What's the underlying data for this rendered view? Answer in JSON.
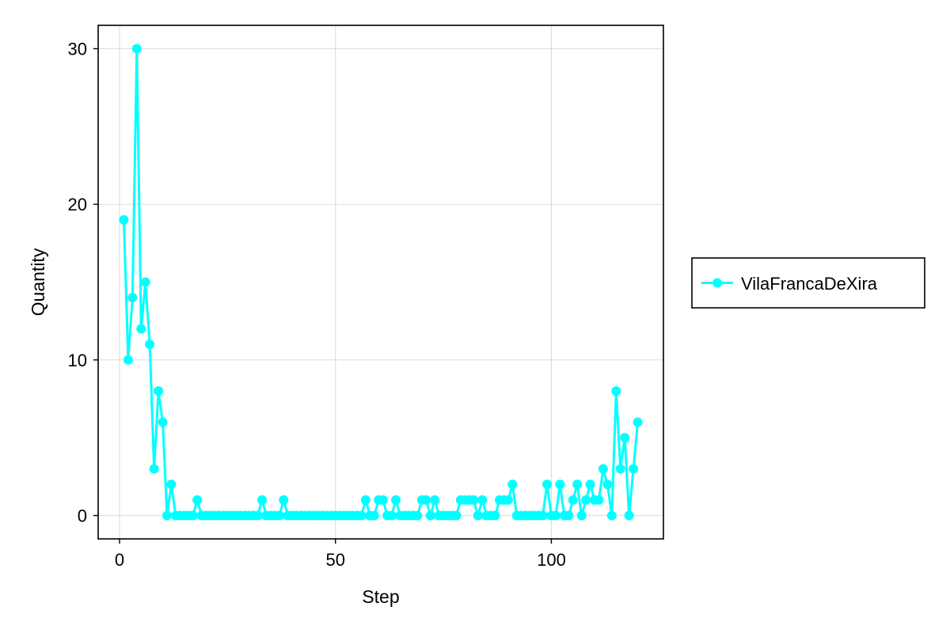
{
  "chart_data": {
    "type": "line",
    "title": "",
    "xlabel": "Step",
    "ylabel": "Quantity",
    "xlim": [
      -4.95,
      125.95
    ],
    "ylim": [
      -1.5,
      31.5
    ],
    "xticks": [
      0,
      50,
      100
    ],
    "yticks": [
      0,
      10,
      20,
      30
    ],
    "grid": true,
    "legend": {
      "placement": "right"
    },
    "series": [
      {
        "name": "VilaFrancaDeXira",
        "color": "#00ffff",
        "marker": "circle",
        "x": [
          1,
          2,
          3,
          4,
          5,
          6,
          7,
          8,
          9,
          10,
          11,
          12,
          13,
          14,
          15,
          16,
          17,
          18,
          19,
          20,
          21,
          22,
          23,
          24,
          25,
          26,
          27,
          28,
          29,
          30,
          31,
          32,
          33,
          34,
          35,
          36,
          37,
          38,
          39,
          40,
          41,
          42,
          43,
          44,
          45,
          46,
          47,
          48,
          49,
          50,
          51,
          52,
          53,
          54,
          55,
          56,
          57,
          58,
          59,
          60,
          61,
          62,
          63,
          64,
          65,
          66,
          67,
          68,
          69,
          70,
          71,
          72,
          73,
          74,
          75,
          76,
          77,
          78,
          79,
          80,
          81,
          82,
          83,
          84,
          85,
          86,
          87,
          88,
          89,
          90,
          91,
          92,
          93,
          94,
          95,
          96,
          97,
          98,
          99,
          100,
          101,
          102,
          103,
          104,
          105,
          106,
          107,
          108,
          109,
          110,
          111,
          112,
          113,
          114,
          115,
          116,
          117,
          118,
          119,
          120
        ],
        "y": [
          19,
          10,
          14,
          30,
          12,
          15,
          11,
          3,
          8,
          6,
          0,
          2,
          0,
          0,
          0,
          0,
          0,
          1,
          0,
          0,
          0,
          0,
          0,
          0,
          0,
          0,
          0,
          0,
          0,
          0,
          0,
          0,
          1,
          0,
          0,
          0,
          0,
          1,
          0,
          0,
          0,
          0,
          0,
          0,
          0,
          0,
          0,
          0,
          0,
          0,
          0,
          0,
          0,
          0,
          0,
          0,
          1,
          0,
          0,
          1,
          1,
          0,
          0,
          1,
          0,
          0,
          0,
          0,
          0,
          1,
          1,
          0,
          1,
          0,
          0,
          0,
          0,
          0,
          1,
          1,
          1,
          1,
          0,
          1,
          0,
          0,
          0,
          1,
          1,
          1,
          2,
          0,
          0,
          0,
          0,
          0,
          0,
          0,
          2,
          0,
          0,
          2,
          0,
          0,
          1,
          2,
          0,
          1,
          2,
          1,
          1,
          3,
          2,
          0,
          8,
          3,
          5,
          0,
          3,
          6
        ]
      }
    ]
  }
}
